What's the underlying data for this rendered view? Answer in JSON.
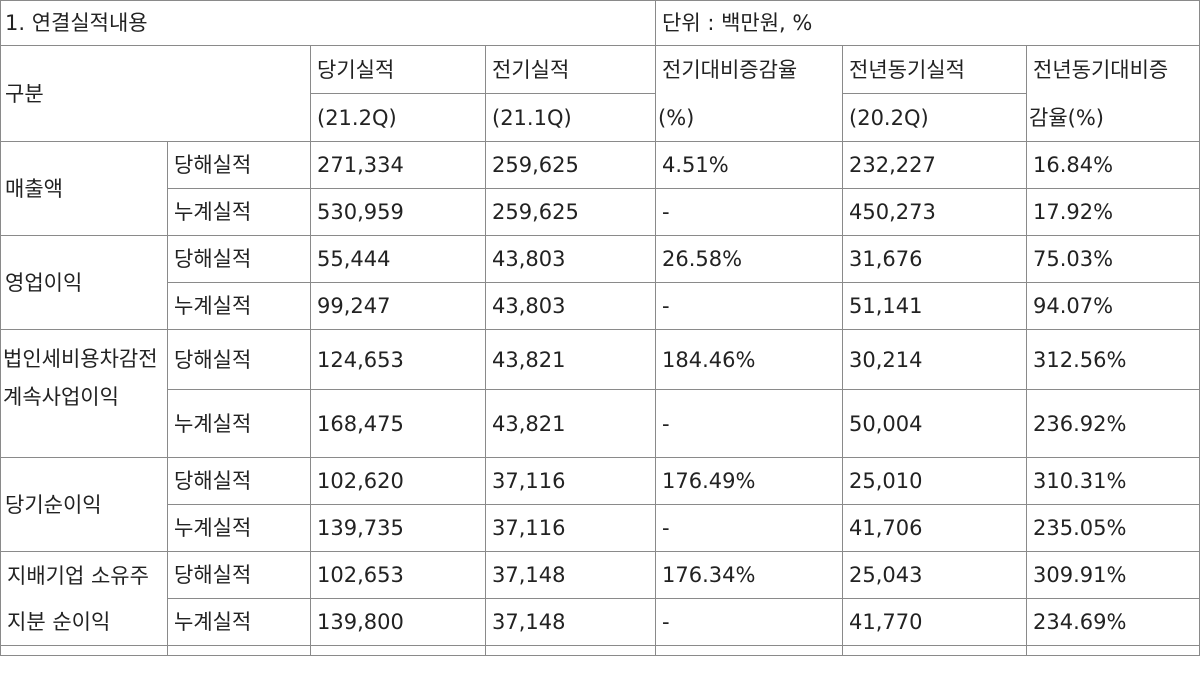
{
  "table": {
    "title": "1. 연결실적내용",
    "unit": "단위 : 백만원, %",
    "header": {
      "category": "구분",
      "current": "당기실적",
      "current_period": "(21.2Q)",
      "previous": "전기실적",
      "previous_period": "(21.1Q)",
      "qoq_change_1": "전기대비증감율",
      "qoq_change_2": "(%)",
      "yoy": "전년동기실적",
      "yoy_period": "(20.2Q)",
      "yoy_change_1": "전년동기대비증",
      "yoy_change_2": "감율(%)"
    },
    "groups": [
      {
        "label": "매출액",
        "rows": [
          {
            "type": "당해실적",
            "current": "271,334",
            "previous": "259,625",
            "qoq": "4.51%",
            "yoy": "232,227",
            "yoy_rate": "16.84%"
          },
          {
            "type": "누계실적",
            "current": "530,959",
            "previous": "259,625",
            "qoq": "-",
            "yoy": "450,273",
            "yoy_rate": "17.92%"
          }
        ]
      },
      {
        "label": "영업이익",
        "rows": [
          {
            "type": "당해실적",
            "current": "55,444",
            "previous": "43,803",
            "qoq": "26.58%",
            "yoy": "31,676",
            "yoy_rate": "75.03%"
          },
          {
            "type": "누계실적",
            "current": "99,247",
            "previous": "43,803",
            "qoq": "-",
            "yoy": "51,141",
            "yoy_rate": "94.07%"
          }
        ]
      },
      {
        "label": "법인세비용차감전계속사업이익",
        "rows": [
          {
            "type": "당해실적",
            "current": "124,653",
            "previous": "43,821",
            "qoq": "184.46%",
            "yoy": "30,214",
            "yoy_rate": "312.56%"
          },
          {
            "type": "누계실적",
            "current": "168,475",
            "previous": "43,821",
            "qoq": "-",
            "yoy": "50,004",
            "yoy_rate": "236.92%"
          }
        ]
      },
      {
        "label": "당기순이익",
        "rows": [
          {
            "type": "당해실적",
            "current": "102,620",
            "previous": "37,116",
            "qoq": "176.49%",
            "yoy": "25,010",
            "yoy_rate": "310.31%"
          },
          {
            "type": "누계실적",
            "current": "139,735",
            "previous": "37,116",
            "qoq": "-",
            "yoy": "41,706",
            "yoy_rate": "235.05%"
          }
        ]
      },
      {
        "label": "지배기업 소유주지분 순이익",
        "rows": [
          {
            "type": "당해실적",
            "current": "102,653",
            "previous": "37,148",
            "qoq": "176.34%",
            "yoy": "25,043",
            "yoy_rate": "309.91%"
          },
          {
            "type": "누계실적",
            "current": "139,800",
            "previous": "37,148",
            "qoq": "-",
            "yoy": "41,770",
            "yoy_rate": "234.69%"
          }
        ]
      }
    ]
  }
}
